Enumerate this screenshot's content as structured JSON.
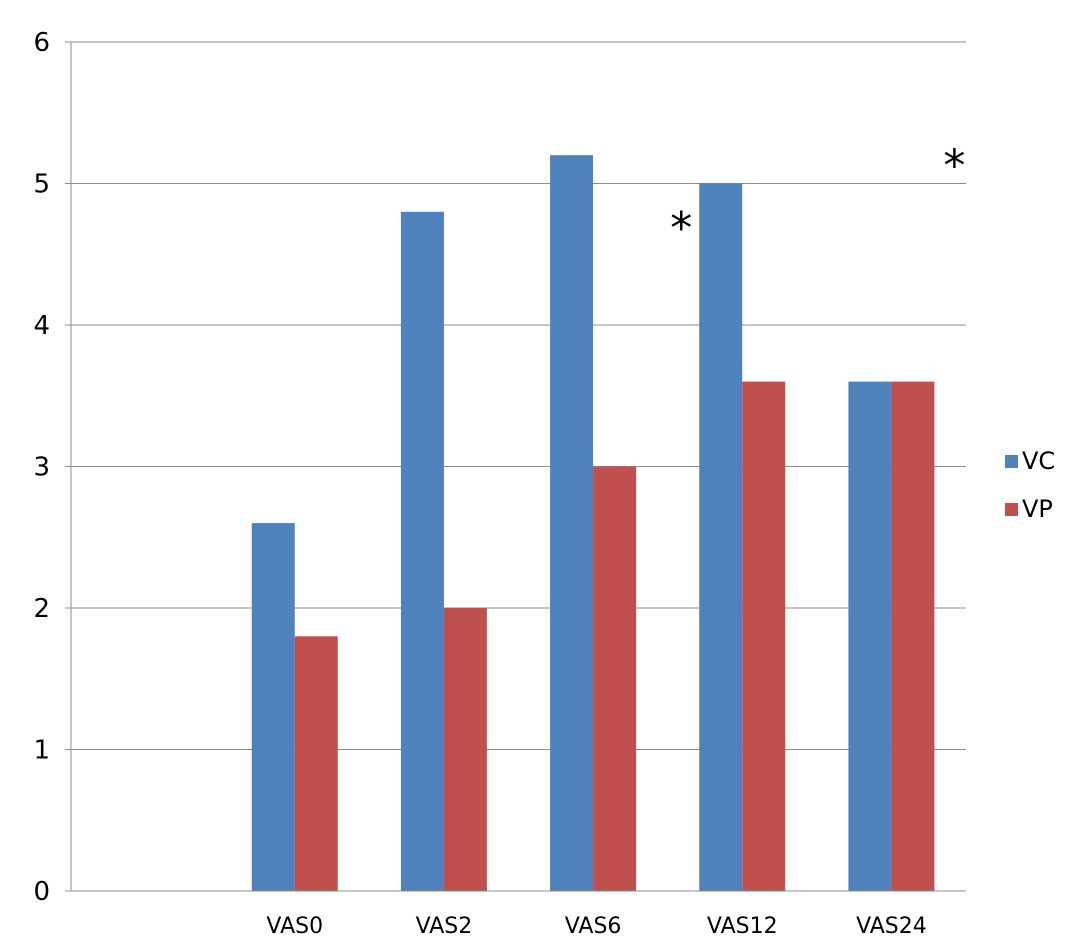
{
  "chart_data": {
    "type": "bar",
    "title": "",
    "xlabel": "",
    "ylabel": "",
    "ylim": [
      0,
      6
    ],
    "yticks": [
      "0",
      "1",
      "2",
      "3",
      "4",
      "5",
      "6"
    ],
    "grid": true,
    "legend_position": "right",
    "categories": [
      "",
      "VAS0",
      "VAS2",
      "VAS6",
      "VAS12",
      "VAS24"
    ],
    "series": [
      {
        "name": "VC",
        "color": "#4F81BD",
        "values": [
          null,
          2.6,
          4.8,
          5.2,
          5.0,
          3.6
        ]
      },
      {
        "name": "VP",
        "color": "#C0504D",
        "values": [
          null,
          1.8,
          2.0,
          3.0,
          3.6,
          3.6
        ]
      }
    ],
    "annotations": [
      {
        "text": "*",
        "category": "VAS12",
        "position": "left of VC bar top"
      },
      {
        "text": "*",
        "category": "VAS24",
        "position": "above bars"
      }
    ]
  }
}
